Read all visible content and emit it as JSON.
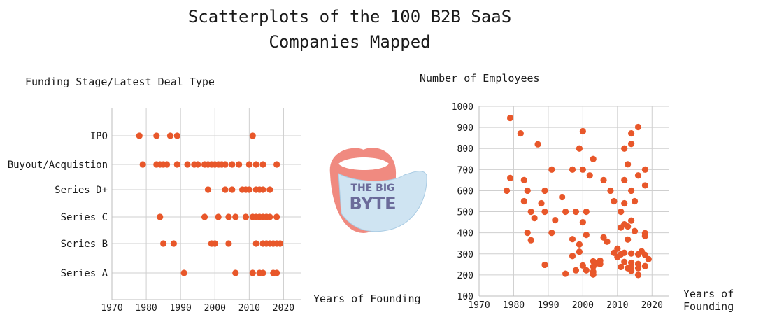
{
  "title": "Scatterplots of the 100 B2B SaaS Companies Mapped",
  "logo": {
    "line1": "THE BIG",
    "line2": "BYTE"
  },
  "colors": {
    "point": "#e8572a"
  },
  "chart_data": [
    {
      "type": "scatter",
      "title": "Funding Stage/Latest Deal Type",
      "xlabel": "Years of Founding",
      "ylabel": "",
      "xlim": [
        1970,
        2025
      ],
      "xticks": [
        1970,
        1980,
        1990,
        2000,
        2010,
        2020
      ],
      "categories": [
        "IPO",
        "Buyout/Acquistion",
        "Series D+",
        "Series C",
        "Series B",
        "Series A"
      ],
      "grid": true,
      "points": [
        {
          "x": 1978,
          "y": "IPO"
        },
        {
          "x": 1983,
          "y": "IPO"
        },
        {
          "x": 1987,
          "y": "IPO"
        },
        {
          "x": 1989,
          "y": "IPO"
        },
        {
          "x": 2011,
          "y": "IPO"
        },
        {
          "x": 1979,
          "y": "Buyout/Acquistion"
        },
        {
          "x": 1983,
          "y": "Buyout/Acquistion"
        },
        {
          "x": 1984,
          "y": "Buyout/Acquistion"
        },
        {
          "x": 1985,
          "y": "Buyout/Acquistion"
        },
        {
          "x": 1986,
          "y": "Buyout/Acquistion"
        },
        {
          "x": 1989,
          "y": "Buyout/Acquistion"
        },
        {
          "x": 1992,
          "y": "Buyout/Acquistion"
        },
        {
          "x": 1994,
          "y": "Buyout/Acquistion"
        },
        {
          "x": 1995,
          "y": "Buyout/Acquistion"
        },
        {
          "x": 1997,
          "y": "Buyout/Acquistion"
        },
        {
          "x": 1998,
          "y": "Buyout/Acquistion"
        },
        {
          "x": 1999,
          "y": "Buyout/Acquistion"
        },
        {
          "x": 2000,
          "y": "Buyout/Acquistion"
        },
        {
          "x": 2001,
          "y": "Buyout/Acquistion"
        },
        {
          "x": 2002,
          "y": "Buyout/Acquistion"
        },
        {
          "x": 2003,
          "y": "Buyout/Acquistion"
        },
        {
          "x": 2005,
          "y": "Buyout/Acquistion"
        },
        {
          "x": 2007,
          "y": "Buyout/Acquistion"
        },
        {
          "x": 2010,
          "y": "Buyout/Acquistion"
        },
        {
          "x": 2012,
          "y": "Buyout/Acquistion"
        },
        {
          "x": 2014,
          "y": "Buyout/Acquistion"
        },
        {
          "x": 2018,
          "y": "Buyout/Acquistion"
        },
        {
          "x": 1998,
          "y": "Series D+"
        },
        {
          "x": 2003,
          "y": "Series D+"
        },
        {
          "x": 2005,
          "y": "Series D+"
        },
        {
          "x": 2008,
          "y": "Series D+"
        },
        {
          "x": 2009,
          "y": "Series D+"
        },
        {
          "x": 2010,
          "y": "Series D+"
        },
        {
          "x": 2012,
          "y": "Series D+"
        },
        {
          "x": 2013,
          "y": "Series D+"
        },
        {
          "x": 2014,
          "y": "Series D+"
        },
        {
          "x": 2016,
          "y": "Series D+"
        },
        {
          "x": 1984,
          "y": "Series C"
        },
        {
          "x": 1997,
          "y": "Series C"
        },
        {
          "x": 2001,
          "y": "Series C"
        },
        {
          "x": 2004,
          "y": "Series C"
        },
        {
          "x": 2006,
          "y": "Series C"
        },
        {
          "x": 2009,
          "y": "Series C"
        },
        {
          "x": 2011,
          "y": "Series C"
        },
        {
          "x": 2012,
          "y": "Series C"
        },
        {
          "x": 2013,
          "y": "Series C"
        },
        {
          "x": 2014,
          "y": "Series C"
        },
        {
          "x": 2015,
          "y": "Series C"
        },
        {
          "x": 2016,
          "y": "Series C"
        },
        {
          "x": 2018,
          "y": "Series C"
        },
        {
          "x": 1985,
          "y": "Series B"
        },
        {
          "x": 1988,
          "y": "Series B"
        },
        {
          "x": 1999,
          "y": "Series B"
        },
        {
          "x": 2000,
          "y": "Series B"
        },
        {
          "x": 2004,
          "y": "Series B"
        },
        {
          "x": 2012,
          "y": "Series B"
        },
        {
          "x": 2014,
          "y": "Series B"
        },
        {
          "x": 2015,
          "y": "Series B"
        },
        {
          "x": 2016,
          "y": "Series B"
        },
        {
          "x": 2017,
          "y": "Series B"
        },
        {
          "x": 2018,
          "y": "Series B"
        },
        {
          "x": 2019,
          "y": "Series B"
        },
        {
          "x": 1991,
          "y": "Series A"
        },
        {
          "x": 2006,
          "y": "Series A"
        },
        {
          "x": 2011,
          "y": "Series A"
        },
        {
          "x": 2013,
          "y": "Series A"
        },
        {
          "x": 2014,
          "y": "Series A"
        },
        {
          "x": 2017,
          "y": "Series A"
        },
        {
          "x": 2018,
          "y": "Series A"
        }
      ]
    },
    {
      "type": "scatter",
      "title": "Number of Employees",
      "xlabel": "Years of Founding",
      "ylabel": "",
      "xlim": [
        1970,
        2025
      ],
      "ylim": [
        100,
        1000
      ],
      "xticks": [
        1970,
        1980,
        1990,
        2000,
        2010,
        2020
      ],
      "yticks": [
        100,
        200,
        300,
        400,
        500,
        600,
        700,
        800,
        900,
        1000
      ],
      "grid": true,
      "points": [
        {
          "x": 1979,
          "y": 945
        },
        {
          "x": 1982,
          "y": 872
        },
        {
          "x": 1987,
          "y": 820
        },
        {
          "x": 2000,
          "y": 882
        },
        {
          "x": 2016,
          "y": 902
        },
        {
          "x": 2014,
          "y": 872
        },
        {
          "x": 2014,
          "y": 822
        },
        {
          "x": 1999,
          "y": 800
        },
        {
          "x": 2012,
          "y": 800
        },
        {
          "x": 2003,
          "y": 750
        },
        {
          "x": 2013,
          "y": 725
        },
        {
          "x": 1991,
          "y": 700
        },
        {
          "x": 1997,
          "y": 700
        },
        {
          "x": 2000,
          "y": 700
        },
        {
          "x": 2018,
          "y": 700
        },
        {
          "x": 2002,
          "y": 672
        },
        {
          "x": 2016,
          "y": 672
        },
        {
          "x": 1979,
          "y": 660
        },
        {
          "x": 1983,
          "y": 650
        },
        {
          "x": 2006,
          "y": 650
        },
        {
          "x": 2012,
          "y": 650
        },
        {
          "x": 2018,
          "y": 625
        },
        {
          "x": 1978,
          "y": 600
        },
        {
          "x": 1984,
          "y": 600
        },
        {
          "x": 1989,
          "y": 600
        },
        {
          "x": 2008,
          "y": 600
        },
        {
          "x": 2014,
          "y": 600
        },
        {
          "x": 1994,
          "y": 570
        },
        {
          "x": 1983,
          "y": 550
        },
        {
          "x": 2009,
          "y": 550
        },
        {
          "x": 2015,
          "y": 550
        },
        {
          "x": 1988,
          "y": 540
        },
        {
          "x": 2012,
          "y": 540
        },
        {
          "x": 1985,
          "y": 500
        },
        {
          "x": 1989,
          "y": 500
        },
        {
          "x": 1995,
          "y": 500
        },
        {
          "x": 1998,
          "y": 500
        },
        {
          "x": 2001,
          "y": 500
        },
        {
          "x": 2011,
          "y": 500
        },
        {
          "x": 1986,
          "y": 470
        },
        {
          "x": 1992,
          "y": 460
        },
        {
          "x": 2000,
          "y": 450
        },
        {
          "x": 2014,
          "y": 458
        },
        {
          "x": 2012,
          "y": 440
        },
        {
          "x": 2011,
          "y": 425
        },
        {
          "x": 2013,
          "y": 430
        },
        {
          "x": 2015,
          "y": 408
        },
        {
          "x": 1984,
          "y": 400
        },
        {
          "x": 1991,
          "y": 400
        },
        {
          "x": 2001,
          "y": 390
        },
        {
          "x": 2018,
          "y": 398
        },
        {
          "x": 2018,
          "y": 385
        },
        {
          "x": 1985,
          "y": 365
        },
        {
          "x": 1997,
          "y": 370
        },
        {
          "x": 2006,
          "y": 378
        },
        {
          "x": 2007,
          "y": 358
        },
        {
          "x": 2013,
          "y": 368
        },
        {
          "x": 1999,
          "y": 345
        },
        {
          "x": 2010,
          "y": 325
        },
        {
          "x": 1999,
          "y": 310
        },
        {
          "x": 2009,
          "y": 305
        },
        {
          "x": 2011,
          "y": 298
        },
        {
          "x": 2012,
          "y": 305
        },
        {
          "x": 2014,
          "y": 302
        },
        {
          "x": 2016,
          "y": 298
        },
        {
          "x": 2017,
          "y": 312
        },
        {
          "x": 2018,
          "y": 295
        },
        {
          "x": 1997,
          "y": 290
        },
        {
          "x": 2010,
          "y": 285
        },
        {
          "x": 2019,
          "y": 275
        },
        {
          "x": 2003,
          "y": 265
        },
        {
          "x": 2004,
          "y": 255
        },
        {
          "x": 2005,
          "y": 268
        },
        {
          "x": 2005,
          "y": 252
        },
        {
          "x": 2012,
          "y": 262
        },
        {
          "x": 2014,
          "y": 258
        },
        {
          "x": 2016,
          "y": 252
        },
        {
          "x": 1989,
          "y": 248
        },
        {
          "x": 2000,
          "y": 245
        },
        {
          "x": 2003,
          "y": 240
        },
        {
          "x": 2011,
          "y": 238
        },
        {
          "x": 2013,
          "y": 232
        },
        {
          "x": 2014,
          "y": 238
        },
        {
          "x": 2016,
          "y": 232
        },
        {
          "x": 2018,
          "y": 242
        },
        {
          "x": 1998,
          "y": 222
        },
        {
          "x": 2001,
          "y": 222
        },
        {
          "x": 2003,
          "y": 215
        },
        {
          "x": 2014,
          "y": 220
        },
        {
          "x": 1995,
          "y": 206
        },
        {
          "x": 2003,
          "y": 202
        },
        {
          "x": 2016,
          "y": 200
        }
      ]
    }
  ]
}
